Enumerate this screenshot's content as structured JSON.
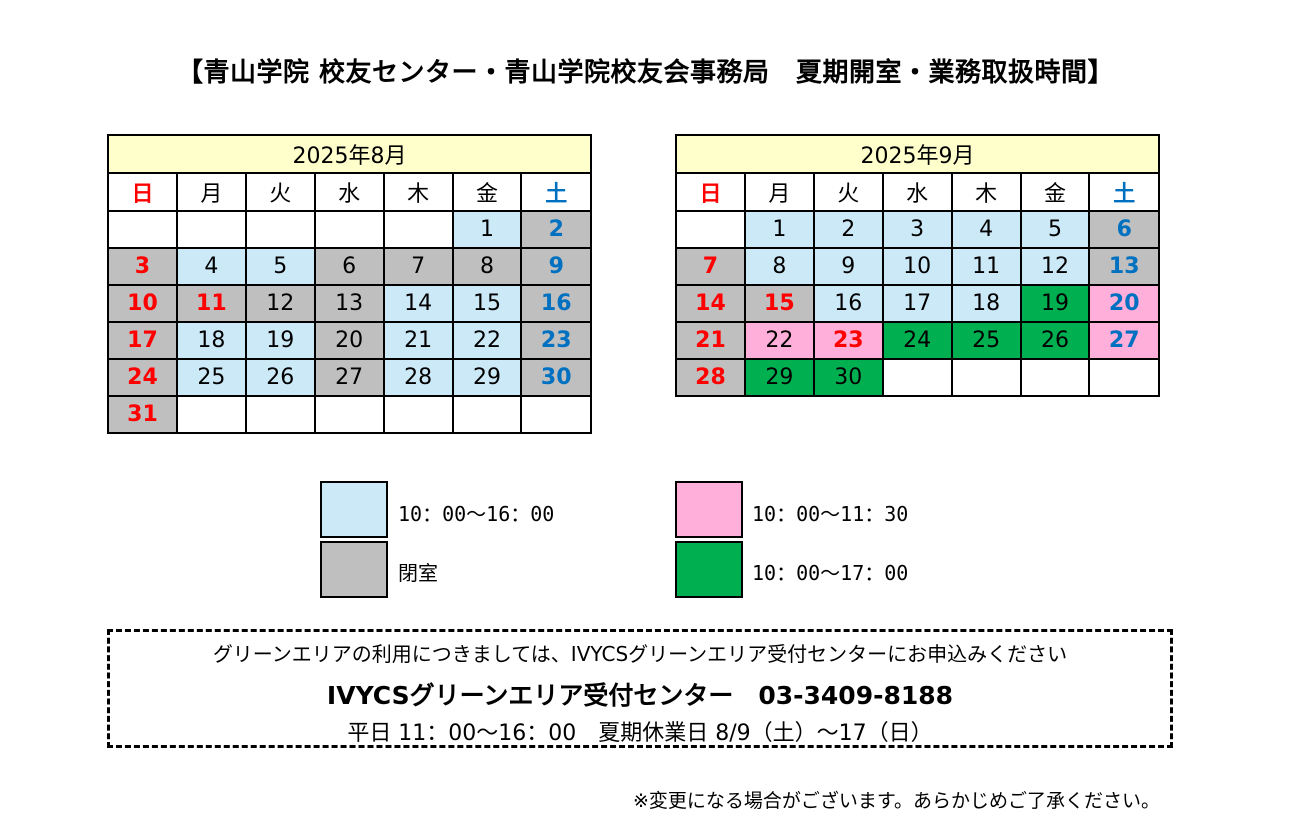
{
  "title": "【青山学院 校友センター・青山学院校友会事務局　夏期開室・業務取扱時間】",
  "colors": {
    "open": "#cce9f8",
    "closed": "#bfbfbf",
    "morning": "#ffafd9",
    "extended": "#00b050",
    "header": "#ffffcc",
    "sunday_text": "#ff0000",
    "saturday_text": "#0070c0"
  },
  "calendars": [
    {
      "month_label": "2025年8月",
      "weekdays": [
        "日",
        "月",
        "火",
        "水",
        "木",
        "金",
        "土"
      ],
      "weeks": [
        [
          {
            "d": "",
            "s": "blank"
          },
          {
            "d": "",
            "s": "blank"
          },
          {
            "d": "",
            "s": "blank"
          },
          {
            "d": "",
            "s": "blank"
          },
          {
            "d": "",
            "s": "blank"
          },
          {
            "d": "1",
            "s": "open"
          },
          {
            "d": "2",
            "s": "closed"
          }
        ],
        [
          {
            "d": "3",
            "s": "closed"
          },
          {
            "d": "4",
            "s": "open"
          },
          {
            "d": "5",
            "s": "open"
          },
          {
            "d": "6",
            "s": "closed"
          },
          {
            "d": "7",
            "s": "closed"
          },
          {
            "d": "8",
            "s": "closed"
          },
          {
            "d": "9",
            "s": "closed"
          }
        ],
        [
          {
            "d": "10",
            "s": "closed"
          },
          {
            "d": "11",
            "s": "closed",
            "holiday": true
          },
          {
            "d": "12",
            "s": "closed"
          },
          {
            "d": "13",
            "s": "closed"
          },
          {
            "d": "14",
            "s": "open"
          },
          {
            "d": "15",
            "s": "open"
          },
          {
            "d": "16",
            "s": "closed"
          }
        ],
        [
          {
            "d": "17",
            "s": "closed"
          },
          {
            "d": "18",
            "s": "open"
          },
          {
            "d": "19",
            "s": "open"
          },
          {
            "d": "20",
            "s": "closed"
          },
          {
            "d": "21",
            "s": "open"
          },
          {
            "d": "22",
            "s": "open"
          },
          {
            "d": "23",
            "s": "closed"
          }
        ],
        [
          {
            "d": "24",
            "s": "closed"
          },
          {
            "d": "25",
            "s": "open"
          },
          {
            "d": "26",
            "s": "open"
          },
          {
            "d": "27",
            "s": "closed"
          },
          {
            "d": "28",
            "s": "open"
          },
          {
            "d": "29",
            "s": "open"
          },
          {
            "d": "30",
            "s": "closed"
          }
        ],
        [
          {
            "d": "31",
            "s": "closed"
          },
          {
            "d": "",
            "s": "blank"
          },
          {
            "d": "",
            "s": "blank"
          },
          {
            "d": "",
            "s": "blank"
          },
          {
            "d": "",
            "s": "blank"
          },
          {
            "d": "",
            "s": "blank"
          },
          {
            "d": "",
            "s": "blank"
          }
        ]
      ]
    },
    {
      "month_label": "2025年9月",
      "weekdays": [
        "日",
        "月",
        "火",
        "水",
        "木",
        "金",
        "土"
      ],
      "weeks": [
        [
          {
            "d": "",
            "s": "blank"
          },
          {
            "d": "1",
            "s": "open"
          },
          {
            "d": "2",
            "s": "open"
          },
          {
            "d": "3",
            "s": "open"
          },
          {
            "d": "4",
            "s": "open"
          },
          {
            "d": "5",
            "s": "open"
          },
          {
            "d": "6",
            "s": "closed"
          }
        ],
        [
          {
            "d": "7",
            "s": "closed"
          },
          {
            "d": "8",
            "s": "open"
          },
          {
            "d": "9",
            "s": "open"
          },
          {
            "d": "10",
            "s": "open"
          },
          {
            "d": "11",
            "s": "open"
          },
          {
            "d": "12",
            "s": "open"
          },
          {
            "d": "13",
            "s": "closed"
          }
        ],
        [
          {
            "d": "14",
            "s": "closed"
          },
          {
            "d": "15",
            "s": "closed",
            "holiday": true
          },
          {
            "d": "16",
            "s": "open"
          },
          {
            "d": "17",
            "s": "open"
          },
          {
            "d": "18",
            "s": "open"
          },
          {
            "d": "19",
            "s": "extended"
          },
          {
            "d": "20",
            "s": "morning"
          }
        ],
        [
          {
            "d": "21",
            "s": "closed"
          },
          {
            "d": "22",
            "s": "morning"
          },
          {
            "d": "23",
            "s": "morning",
            "holiday": true
          },
          {
            "d": "24",
            "s": "extended"
          },
          {
            "d": "25",
            "s": "extended"
          },
          {
            "d": "26",
            "s": "extended"
          },
          {
            "d": "27",
            "s": "morning"
          }
        ],
        [
          {
            "d": "28",
            "s": "closed"
          },
          {
            "d": "29",
            "s": "extended"
          },
          {
            "d": "30",
            "s": "extended"
          },
          {
            "d": "",
            "s": "blank"
          },
          {
            "d": "",
            "s": "blank"
          },
          {
            "d": "",
            "s": "blank"
          },
          {
            "d": "",
            "s": "blank"
          }
        ]
      ]
    }
  ],
  "legend": [
    {
      "status": "open",
      "label": "10：00～16：00"
    },
    {
      "status": "closed",
      "label": "閉室"
    },
    {
      "status": "morning",
      "label": "10：00～11：30"
    },
    {
      "status": "extended",
      "label": "10：00～17：00"
    }
  ],
  "notice": {
    "line1": "グリーンエリアの利用につきましては、IVYCSグリーンエリア受付センターにお申込みください",
    "line2": "IVYCSグリーンエリア受付センター　03-3409-8188",
    "line3": "平日 11：00～16：00　夏期休業日 8/9（土）～17（日）"
  },
  "footnote": "※変更になる場合がございます。あらかじめご了承ください。"
}
